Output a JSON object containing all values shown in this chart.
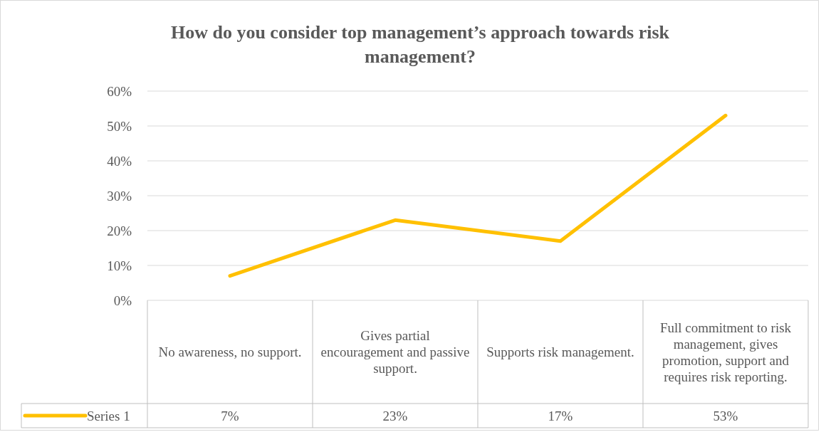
{
  "chart_data": {
    "type": "line",
    "title": "How do you consider top management’s approach towards risk management?",
    "categories": [
      "No awareness, no support.",
      "Gives partial encouragement and passive support.",
      "Supports risk management.",
      "Full commitment to risk management, gives promotion, support and requires risk reporting."
    ],
    "series": [
      {
        "name": "Series 1",
        "color": "#ffc000",
        "values": [
          7,
          23,
          17,
          53
        ]
      }
    ],
    "value_labels": [
      "7%",
      "23%",
      "17%",
      "53%"
    ],
    "ylim": [
      0,
      60
    ],
    "yticks": [
      {
        "value": 0,
        "label": "0%"
      },
      {
        "value": 10,
        "label": "10%"
      },
      {
        "value": 20,
        "label": "20%"
      },
      {
        "value": 30,
        "label": "30%"
      },
      {
        "value": 40,
        "label": "40%"
      },
      {
        "value": 50,
        "label": "50%"
      },
      {
        "value": 60,
        "label": "60%"
      }
    ],
    "grid": "y",
    "marker": "none",
    "line_style": "solid"
  }
}
